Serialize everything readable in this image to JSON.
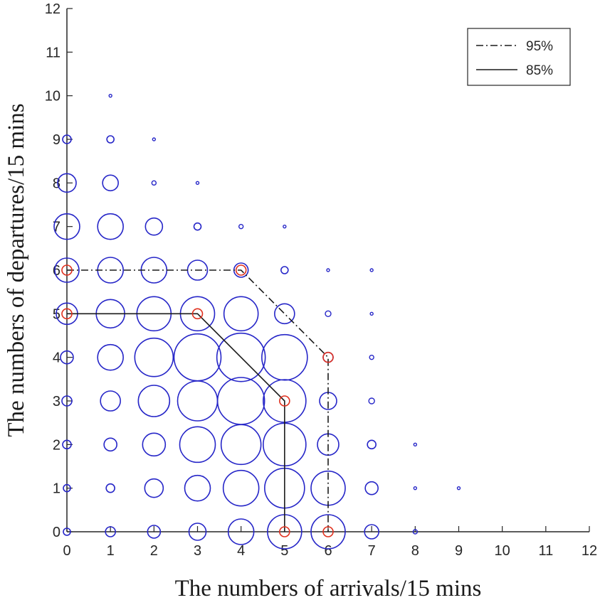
{
  "chart_data": {
    "type": "scatter",
    "xlabel": "The numbers of arrivals/15 mins",
    "ylabel": "The numbers of departures/15 mins",
    "xlim": [
      0,
      12
    ],
    "ylim": [
      0,
      12
    ],
    "xticks": [
      "0",
      "1",
      "2",
      "3",
      "4",
      "5",
      "6",
      "7",
      "8",
      "9",
      "10",
      "11",
      "12"
    ],
    "yticks": [
      "0",
      "1",
      "2",
      "3",
      "4",
      "5",
      "6",
      "7",
      "8",
      "9",
      "10",
      "11",
      "12"
    ],
    "grid": false,
    "legend_position": "top-right",
    "bubble_color": "#2626c8",
    "marker_color": "#e0301e",
    "bubbles": [
      {
        "x": 0,
        "y": 0,
        "s": 5
      },
      {
        "x": 1,
        "y": 0,
        "s": 7
      },
      {
        "x": 2,
        "y": 0,
        "s": 9
      },
      {
        "x": 3,
        "y": 0,
        "s": 12
      },
      {
        "x": 4,
        "y": 0,
        "s": 18
      },
      {
        "x": 5,
        "y": 0,
        "s": 24
      },
      {
        "x": 6,
        "y": 0,
        "s": 24
      },
      {
        "x": 7,
        "y": 0,
        "s": 10
      },
      {
        "x": 8,
        "y": 0,
        "s": 3
      },
      {
        "x": 0,
        "y": 1,
        "s": 5
      },
      {
        "x": 1,
        "y": 1,
        "s": 6
      },
      {
        "x": 2,
        "y": 1,
        "s": 13
      },
      {
        "x": 3,
        "y": 1,
        "s": 18
      },
      {
        "x": 4,
        "y": 1,
        "s": 25
      },
      {
        "x": 5,
        "y": 1,
        "s": 28
      },
      {
        "x": 6,
        "y": 1,
        "s": 24
      },
      {
        "x": 7,
        "y": 1,
        "s": 9
      },
      {
        "x": 8,
        "y": 1,
        "s": 2
      },
      {
        "x": 9,
        "y": 1,
        "s": 2
      },
      {
        "x": 0,
        "y": 2,
        "s": 6
      },
      {
        "x": 1,
        "y": 2,
        "s": 9
      },
      {
        "x": 2,
        "y": 2,
        "s": 16
      },
      {
        "x": 3,
        "y": 2,
        "s": 25
      },
      {
        "x": 4,
        "y": 2,
        "s": 28
      },
      {
        "x": 5,
        "y": 2,
        "s": 30
      },
      {
        "x": 6,
        "y": 2,
        "s": 15
      },
      {
        "x": 7,
        "y": 2,
        "s": 6
      },
      {
        "x": 8,
        "y": 2,
        "s": 2
      },
      {
        "x": 0,
        "y": 3,
        "s": 7
      },
      {
        "x": 1,
        "y": 3,
        "s": 14
      },
      {
        "x": 2,
        "y": 3,
        "s": 22
      },
      {
        "x": 3,
        "y": 3,
        "s": 28
      },
      {
        "x": 4,
        "y": 3,
        "s": 33
      },
      {
        "x": 5,
        "y": 3,
        "s": 30
      },
      {
        "x": 6,
        "y": 3,
        "s": 12
      },
      {
        "x": 7,
        "y": 3,
        "s": 4
      },
      {
        "x": 0,
        "y": 4,
        "s": 9
      },
      {
        "x": 1,
        "y": 4,
        "s": 18
      },
      {
        "x": 2,
        "y": 4,
        "s": 27
      },
      {
        "x": 3,
        "y": 4,
        "s": 33
      },
      {
        "x": 4,
        "y": 4,
        "s": 34
      },
      {
        "x": 5,
        "y": 4,
        "s": 32
      },
      {
        "x": 6,
        "y": 4,
        "s": 7
      },
      {
        "x": 7,
        "y": 4,
        "s": 3
      },
      {
        "x": 0,
        "y": 5,
        "s": 15
      },
      {
        "x": 1,
        "y": 5,
        "s": 20
      },
      {
        "x": 2,
        "y": 5,
        "s": 24
      },
      {
        "x": 3,
        "y": 5,
        "s": 24
      },
      {
        "x": 4,
        "y": 5,
        "s": 24
      },
      {
        "x": 5,
        "y": 5,
        "s": 14
      },
      {
        "x": 6,
        "y": 5,
        "s": 4
      },
      {
        "x": 7,
        "y": 5,
        "s": 2
      },
      {
        "x": 0,
        "y": 6,
        "s": 17
      },
      {
        "x": 1,
        "y": 6,
        "s": 18
      },
      {
        "x": 2,
        "y": 6,
        "s": 18
      },
      {
        "x": 3,
        "y": 6,
        "s": 14
      },
      {
        "x": 4,
        "y": 6,
        "s": 10
      },
      {
        "x": 5,
        "y": 6,
        "s": 5
      },
      {
        "x": 6,
        "y": 6,
        "s": 2
      },
      {
        "x": 7,
        "y": 6,
        "s": 2
      },
      {
        "x": 0,
        "y": 7,
        "s": 18
      },
      {
        "x": 1,
        "y": 7,
        "s": 18
      },
      {
        "x": 2,
        "y": 7,
        "s": 12
      },
      {
        "x": 3,
        "y": 7,
        "s": 5
      },
      {
        "x": 4,
        "y": 7,
        "s": 3
      },
      {
        "x": 5,
        "y": 7,
        "s": 2
      },
      {
        "x": 0,
        "y": 8,
        "s": 13
      },
      {
        "x": 1,
        "y": 8,
        "s": 11
      },
      {
        "x": 2,
        "y": 8,
        "s": 3
      },
      {
        "x": 3,
        "y": 8,
        "s": 2
      },
      {
        "x": 0,
        "y": 9,
        "s": 6
      },
      {
        "x": 1,
        "y": 9,
        "s": 5
      },
      {
        "x": 2,
        "y": 9,
        "s": 2
      },
      {
        "x": 1,
        "y": 10,
        "s": 2
      }
    ],
    "markers": [
      {
        "x": 0,
        "y": 6
      },
      {
        "x": 4,
        "y": 6
      },
      {
        "x": 6,
        "y": 4
      },
      {
        "x": 6,
        "y": 0
      },
      {
        "x": 0,
        "y": 5
      },
      {
        "x": 3,
        "y": 5
      },
      {
        "x": 5,
        "y": 3
      },
      {
        "x": 5,
        "y": 0
      }
    ],
    "series": [
      {
        "name": "95%",
        "line_style": "dash-dot",
        "x": [
          0,
          4,
          6,
          6
        ],
        "y": [
          6,
          6,
          4,
          0
        ]
      },
      {
        "name": "85%",
        "line_style": "solid",
        "x": [
          0,
          3,
          5,
          5
        ],
        "y": [
          5,
          5,
          3,
          0
        ]
      }
    ]
  }
}
